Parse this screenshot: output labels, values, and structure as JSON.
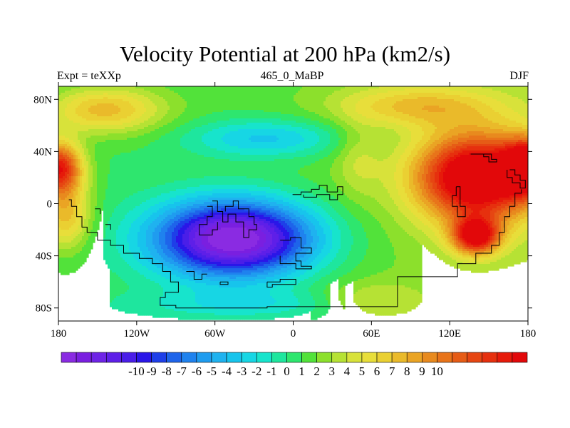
{
  "chart_data": {
    "type": "heatmap",
    "title": "Velocity Potential at 200 hPa (km2/s)",
    "left_label": "Expt = teXXp",
    "center_label": "465_0_MaBP",
    "right_label": "DJF",
    "x_axis": {
      "range": [
        -180,
        180
      ],
      "ticks": [
        {
          "value": -180,
          "label": "180"
        },
        {
          "value": -120,
          "label": "120W"
        },
        {
          "value": -60,
          "label": "60W"
        },
        {
          "value": 0,
          "label": "0"
        },
        {
          "value": 60,
          "label": "60E"
        },
        {
          "value": 120,
          "label": "120E"
        },
        {
          "value": 180,
          "label": "180"
        }
      ]
    },
    "y_axis": {
      "range": [
        -90,
        90
      ],
      "ticks": [
        {
          "value": 80,
          "label": "80N"
        },
        {
          "value": 40,
          "label": "40N"
        },
        {
          "value": 0,
          "label": "0"
        },
        {
          "value": -40,
          "label": "40S"
        },
        {
          "value": -80,
          "label": "80S"
        }
      ]
    },
    "field": {
      "units": "km2/s",
      "value_range": [
        -10.5,
        10.5
      ],
      "features": [
        {
          "name": "tropical-minimum",
          "lon": -45,
          "lat": -25,
          "value": -10.5
        },
        {
          "name": "subtropical-maximum",
          "lon": 140,
          "lat": 20,
          "value": 10.5
        },
        {
          "name": "dateline-northern-maximum",
          "lon": -180,
          "lat": 28,
          "value": 8.5
        }
      ]
    },
    "colorbar": {
      "colors": [
        "#8a2be2",
        "#7a1fe0",
        "#6e24e6",
        "#5e1fe8",
        "#4a1ee8",
        "#2a16e8",
        "#1e3fe8",
        "#1e64ea",
        "#1f82ee",
        "#1f9cef",
        "#1fb2ef",
        "#17c4ec",
        "#17d6e4",
        "#17e4cc",
        "#1ee69e",
        "#2ee66e",
        "#52e23a",
        "#8ce02c",
        "#b6e234",
        "#d8e23a",
        "#e8de3a",
        "#ead032",
        "#eaba2a",
        "#eaa424",
        "#e88a1e",
        "#e8741a",
        "#e65c16",
        "#e64612",
        "#e6300e",
        "#e61a0a",
        "#e2080a"
      ],
      "labels": [
        "-10",
        "-9",
        "-8",
        "-7",
        "-6",
        "-5",
        "-4",
        "-3",
        "-2",
        "-1",
        "0",
        "1",
        "2",
        "3",
        "4",
        "5",
        "6",
        "7",
        "8",
        "9",
        "10"
      ]
    }
  }
}
